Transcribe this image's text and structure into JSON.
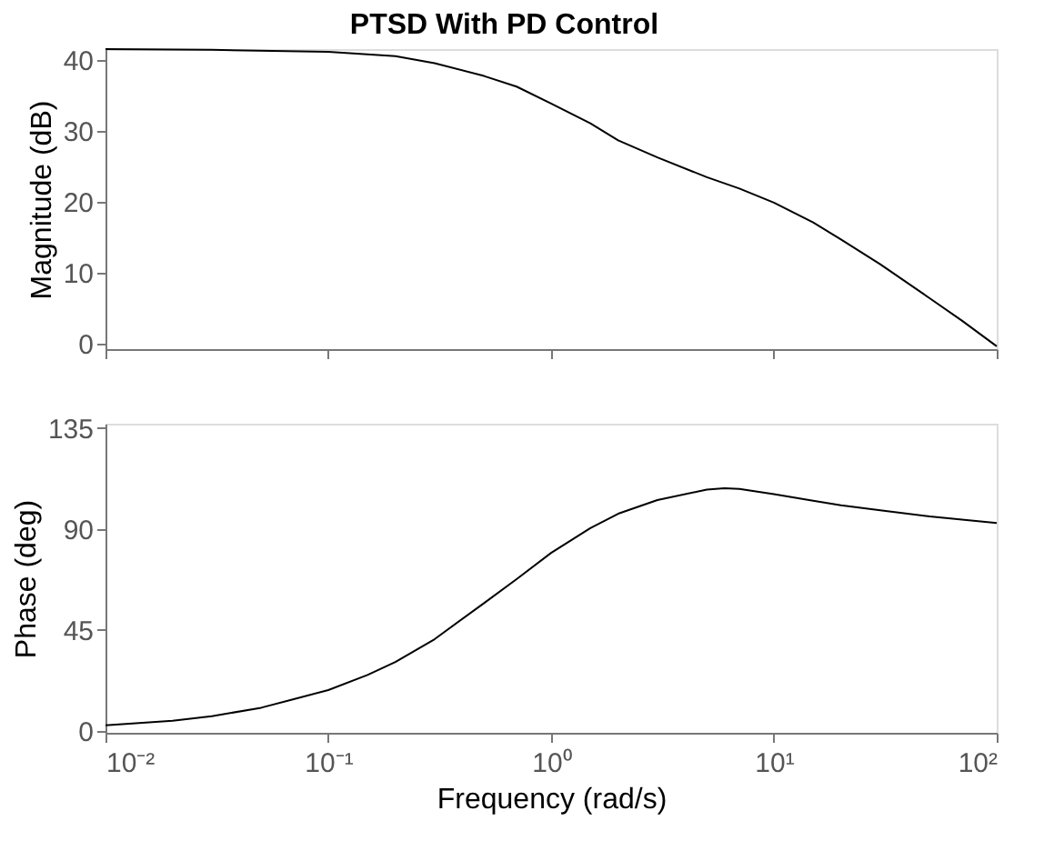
{
  "chart_data": [
    {
      "type": "line",
      "title": "PTSD With PD Control",
      "ylabel": "Magnitude (dB)",
      "tick_labels": "y",
      "log": "x",
      "grid": false,
      "x": [
        0.01,
        0.03,
        0.1,
        0.2,
        0.3,
        0.5,
        0.7,
        1,
        1.5,
        2,
        3,
        5,
        7,
        10,
        15,
        20,
        30,
        50,
        70,
        100
      ],
      "series": [
        {
          "color": "#000000",
          "values": [
            41.6,
            41.5,
            41.2,
            40.6,
            39.6,
            37.8,
            36.3,
            33.9,
            31.1,
            28.7,
            26.3,
            23.5,
            21.9,
            19.9,
            17.1,
            14.7,
            11.2,
            6.4,
            3.2,
            -0.4
          ]
        }
      ],
      "xlim": [
        0.01,
        100
      ],
      "ylim": [
        -0.8,
        41.6
      ],
      "yticks": [
        0,
        10,
        20,
        30,
        40
      ],
      "xticks": [
        {
          "value": 0.01,
          "label": null
        },
        {
          "value": 0.1,
          "label": null
        },
        {
          "value": 1,
          "label": null
        },
        {
          "value": 10,
          "label": null
        },
        {
          "value": 100,
          "label": null
        }
      ]
    },
    {
      "type": "line",
      "xlabel": "Frequency  (rad/s)",
      "ylabel": "Phase (deg)",
      "log": "x",
      "grid": false,
      "x": [
        0.01,
        0.02,
        0.03,
        0.05,
        0.07,
        0.1,
        0.15,
        0.2,
        0.3,
        0.5,
        0.7,
        1,
        1.5,
        2,
        3,
        5,
        6,
        7,
        10,
        15,
        20,
        30,
        50,
        100
      ],
      "series": [
        {
          "color": "#000000",
          "values": [
            2.3,
            4.4,
            6.4,
            10.2,
            14,
            18.1,
            24.8,
            30.6,
            40.8,
            56.9,
            67.6,
            79.3,
            90.4,
            96.8,
            102.9,
            107.6,
            108.2,
            107.9,
            105.5,
            102.6,
            100.6,
            98.3,
            95.6,
            92.7
          ]
        }
      ],
      "xlim": [
        0.01,
        100
      ],
      "ylim": [
        -1,
        137
      ],
      "yticks": [
        0,
        45,
        90,
        135
      ],
      "xticks": [
        {
          "value": 0.01,
          "label": "10⁻²"
        },
        {
          "value": 0.1,
          "label": "10⁻¹"
        },
        {
          "value": 1,
          "label": "10⁰"
        },
        {
          "value": 10,
          "label": "10¹"
        },
        {
          "value": 100,
          "label": "10²"
        }
      ]
    }
  ]
}
